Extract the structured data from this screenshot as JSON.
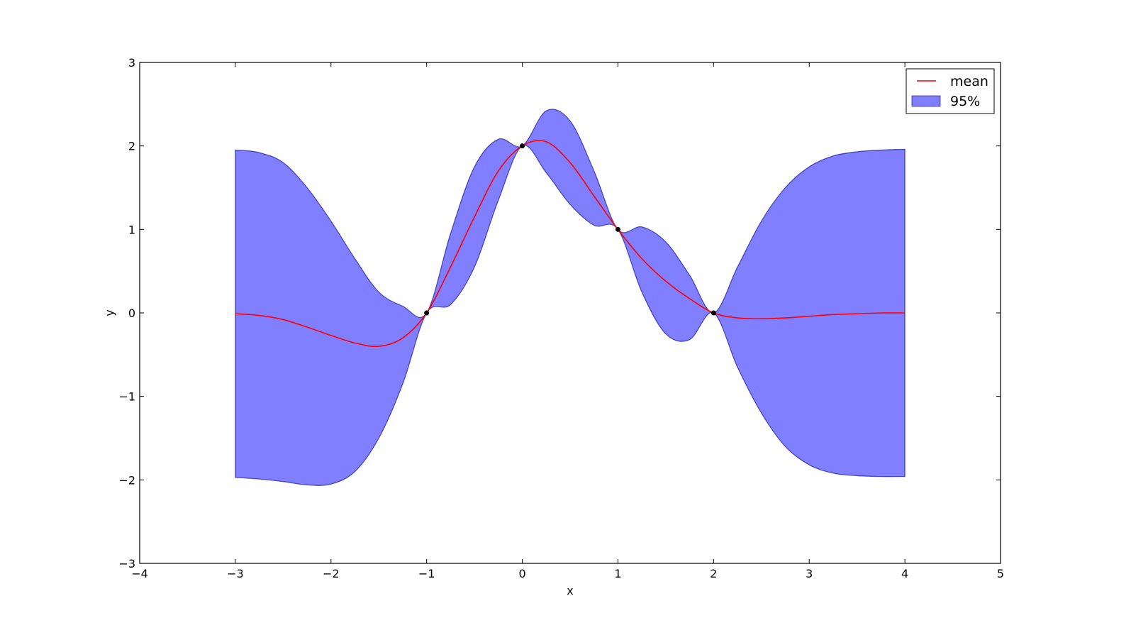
{
  "chart_data": {
    "type": "line",
    "xlabel": "x",
    "ylabel": "y",
    "x": [
      -3,
      -2.75,
      -2.5,
      -2.25,
      -2,
      -1.75,
      -1.5,
      -1.25,
      -1,
      -0.75,
      -0.5,
      -0.25,
      0,
      0.25,
      0.5,
      0.75,
      1,
      1.25,
      1.5,
      1.75,
      2,
      2.25,
      2.5,
      2.75,
      3,
      3.25,
      3.5,
      3.75,
      4
    ],
    "series": [
      {
        "name": "mean",
        "color": "#ff0000",
        "values": [
          -0.01,
          -0.03,
          -0.08,
          -0.17,
          -0.27,
          -0.36,
          -0.4,
          -0.3,
          0,
          0.55,
          1.15,
          1.7,
          2.0,
          2.05,
          1.8,
          1.4,
          1.0,
          0.65,
          0.38,
          0.17,
          0,
          -0.06,
          -0.07,
          -0.06,
          -0.04,
          -0.02,
          -0.01,
          0,
          0
        ]
      }
    ],
    "band": {
      "name": "95%",
      "color": "#0000ff",
      "upper": [
        1.95,
        1.92,
        1.8,
        1.5,
        1.1,
        0.65,
        0.25,
        0.08,
        0,
        0.95,
        1.75,
        2.08,
        2.0,
        2.42,
        2.3,
        1.7,
        1.0,
        1.03,
        0.85,
        0.45,
        0,
        0.55,
        1.1,
        1.5,
        1.75,
        1.88,
        1.93,
        1.95,
        1.96
      ],
      "lower": [
        -1.97,
        -1.99,
        -2.02,
        -2.06,
        -2.05,
        -1.9,
        -1.5,
        -0.85,
        0,
        0.1,
        0.55,
        1.35,
        2.0,
        1.68,
        1.3,
        1.05,
        1.0,
        0.25,
        -0.25,
        -0.32,
        0,
        -0.65,
        -1.2,
        -1.6,
        -1.82,
        -1.92,
        -1.95,
        -1.96,
        -1.96
      ]
    },
    "points": {
      "color": "#000000",
      "x": [
        -1,
        0,
        1,
        2
      ],
      "y": [
        0,
        2,
        1,
        0
      ]
    },
    "xlim": [
      -4,
      5
    ],
    "ylim": [
      -3,
      3
    ],
    "xticks": [
      {
        "value": -4,
        "label": "−4"
      },
      {
        "value": -3,
        "label": "−3"
      },
      {
        "value": -2,
        "label": "−2"
      },
      {
        "value": -1,
        "label": "−1"
      },
      0,
      1,
      2,
      3,
      4,
      5
    ],
    "yticks": [
      {
        "value": -3,
        "label": "−3"
      },
      {
        "value": -2,
        "label": "−2"
      },
      {
        "value": -1,
        "label": "−1"
      },
      0,
      1,
      2,
      3
    ],
    "legend": "upper right"
  }
}
